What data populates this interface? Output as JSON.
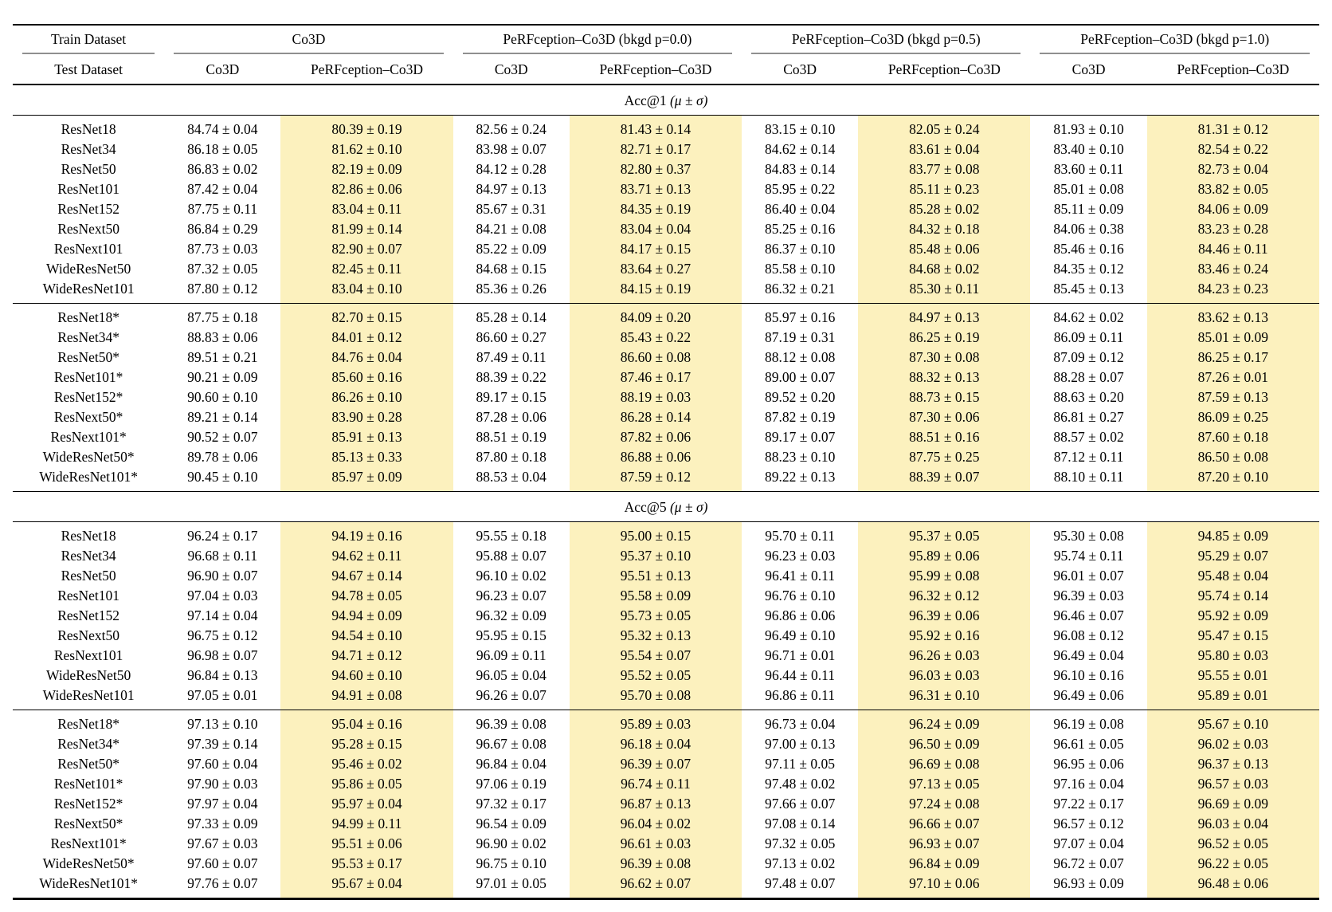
{
  "table": {
    "highlight_color": "#FCF1BE",
    "header": {
      "train_row_label": "Train Dataset",
      "test_row_label": "Test Dataset",
      "groups": [
        {
          "label": "Co3D",
          "tests": [
            "Co3D",
            "PeRFception–Co3D"
          ]
        },
        {
          "label": "PeRFception–Co3D (bkgd p=0.0)",
          "tests": [
            "Co3D",
            "PeRFception–Co3D"
          ]
        },
        {
          "label": "PeRFception–Co3D (bkgd p=0.5)",
          "tests": [
            "Co3D",
            "PeRFception–Co3D"
          ]
        },
        {
          "label": "PeRFception–Co3D (bkgd p=1.0)",
          "tests": [
            "Co3D",
            "PeRFception–Co3D"
          ]
        }
      ]
    },
    "sections": [
      {
        "title": "Acc@1",
        "symbols": "(μ ± σ)",
        "blocks": [
          {
            "rows": [
              {
                "model": "ResNet18",
                "values": [
                  "84.74 ± 0.04",
                  "80.39 ± 0.19",
                  "82.56 ± 0.24",
                  "81.43 ± 0.14",
                  "83.15 ± 0.10",
                  "82.05 ± 0.24",
                  "81.93 ± 0.10",
                  "81.31 ± 0.12"
                ]
              },
              {
                "model": "ResNet34",
                "values": [
                  "86.18 ± 0.05",
                  "81.62 ± 0.10",
                  "83.98 ± 0.07",
                  "82.71 ± 0.17",
                  "84.62 ± 0.14",
                  "83.61 ± 0.04",
                  "83.40 ± 0.10",
                  "82.54 ± 0.22"
                ]
              },
              {
                "model": "ResNet50",
                "values": [
                  "86.83 ± 0.02",
                  "82.19 ± 0.09",
                  "84.12 ± 0.28",
                  "82.80 ± 0.37",
                  "84.83 ± 0.14",
                  "83.77 ± 0.08",
                  "83.60 ± 0.11",
                  "82.73 ± 0.04"
                ]
              },
              {
                "model": "ResNet101",
                "values": [
                  "87.42 ± 0.04",
                  "82.86 ± 0.06",
                  "84.97 ± 0.13",
                  "83.71 ± 0.13",
                  "85.95 ± 0.22",
                  "85.11 ± 0.23",
                  "85.01 ± 0.08",
                  "83.82 ± 0.05"
                ]
              },
              {
                "model": "ResNet152",
                "values": [
                  "87.75 ± 0.11",
                  "83.04 ± 0.11",
                  "85.67 ± 0.31",
                  "84.35 ± 0.19",
                  "86.40 ± 0.04",
                  "85.28 ± 0.02",
                  "85.11 ± 0.09",
                  "84.06 ± 0.09"
                ]
              },
              {
                "model": "ResNext50",
                "values": [
                  "86.84 ± 0.29",
                  "81.99 ± 0.14",
                  "84.21 ± 0.08",
                  "83.04 ± 0.04",
                  "85.25 ± 0.16",
                  "84.32 ± 0.18",
                  "84.06 ± 0.38",
                  "83.23 ± 0.28"
                ]
              },
              {
                "model": "ResNext101",
                "values": [
                  "87.73 ± 0.03",
                  "82.90 ± 0.07",
                  "85.22 ± 0.09",
                  "84.17 ± 0.15",
                  "86.37 ± 0.10",
                  "85.48 ± 0.06",
                  "85.46 ± 0.16",
                  "84.46 ± 0.11"
                ]
              },
              {
                "model": "WideResNet50",
                "values": [
                  "87.32 ± 0.05",
                  "82.45 ± 0.11",
                  "84.68 ± 0.15",
                  "83.64 ± 0.27",
                  "85.58 ± 0.10",
                  "84.68 ± 0.02",
                  "84.35 ± 0.12",
                  "83.46 ± 0.24"
                ]
              },
              {
                "model": "WideResNet101",
                "values": [
                  "87.80 ± 0.12",
                  "83.04 ± 0.10",
                  "85.36 ± 0.26",
                  "84.15 ± 0.19",
                  "86.32 ± 0.21",
                  "85.30 ± 0.11",
                  "85.45 ± 0.13",
                  "84.23 ± 0.23"
                ]
              }
            ]
          },
          {
            "rows": [
              {
                "model": "ResNet18*",
                "values": [
                  "87.75 ± 0.18",
                  "82.70 ± 0.15",
                  "85.28 ± 0.14",
                  "84.09 ± 0.20",
                  "85.97 ± 0.16",
                  "84.97 ± 0.13",
                  "84.62 ± 0.02",
                  "83.62 ± 0.13"
                ]
              },
              {
                "model": "ResNet34*",
                "values": [
                  "88.83 ± 0.06",
                  "84.01 ± 0.12",
                  "86.60 ± 0.27",
                  "85.43 ± 0.22",
                  "87.19 ± 0.31",
                  "86.25 ± 0.19",
                  "86.09 ± 0.11",
                  "85.01 ± 0.09"
                ]
              },
              {
                "model": "ResNet50*",
                "values": [
                  "89.51 ± 0.21",
                  "84.76 ± 0.04",
                  "87.49 ± 0.11",
                  "86.60 ± 0.08",
                  "88.12 ± 0.08",
                  "87.30 ± 0.08",
                  "87.09 ± 0.12",
                  "86.25 ± 0.17"
                ]
              },
              {
                "model": "ResNet101*",
                "values": [
                  "90.21 ± 0.09",
                  "85.60 ± 0.16",
                  "88.39 ± 0.22",
                  "87.46 ± 0.17",
                  "89.00 ± 0.07",
                  "88.32 ± 0.13",
                  "88.28 ± 0.07",
                  "87.26 ± 0.01"
                ]
              },
              {
                "model": "ResNet152*",
                "values": [
                  "90.60 ± 0.10",
                  "86.26 ± 0.10",
                  "89.17 ± 0.15",
                  "88.19 ± 0.03",
                  "89.52 ± 0.20",
                  "88.73 ± 0.15",
                  "88.63 ± 0.20",
                  "87.59 ± 0.13"
                ]
              },
              {
                "model": "ResNext50*",
                "values": [
                  "89.21 ± 0.14",
                  "83.90 ± 0.28",
                  "87.28 ± 0.06",
                  "86.28 ± 0.14",
                  "87.82 ± 0.19",
                  "87.30 ± 0.06",
                  "86.81 ± 0.27",
                  "86.09 ± 0.25"
                ]
              },
              {
                "model": "ResNext101*",
                "values": [
                  "90.52 ± 0.07",
                  "85.91 ± 0.13",
                  "88.51 ± 0.19",
                  "87.82 ± 0.06",
                  "89.17 ± 0.07",
                  "88.51 ± 0.16",
                  "88.57 ± 0.02",
                  "87.60 ± 0.18"
                ]
              },
              {
                "model": "WideResNet50*",
                "values": [
                  "89.78 ± 0.06",
                  "85.13 ± 0.33",
                  "87.80 ± 0.18",
                  "86.88 ± 0.06",
                  "88.23 ± 0.10",
                  "87.75 ± 0.25",
                  "87.12 ± 0.11",
                  "86.50 ± 0.08"
                ]
              },
              {
                "model": "WideResNet101*",
                "values": [
                  "90.45 ± 0.10",
                  "85.97 ± 0.09",
                  "88.53 ± 0.04",
                  "87.59 ± 0.12",
                  "89.22 ± 0.13",
                  "88.39 ± 0.07",
                  "88.10 ± 0.11",
                  "87.20 ± 0.10"
                ]
              }
            ]
          }
        ]
      },
      {
        "title": "Acc@5",
        "symbols": "(μ ± σ)",
        "blocks": [
          {
            "rows": [
              {
                "model": "ResNet18",
                "values": [
                  "96.24 ± 0.17",
                  "94.19 ± 0.16",
                  "95.55 ± 0.18",
                  "95.00 ± 0.15",
                  "95.70 ± 0.11",
                  "95.37 ± 0.05",
                  "95.30 ± 0.08",
                  "94.85 ± 0.09"
                ]
              },
              {
                "model": "ResNet34",
                "values": [
                  "96.68 ± 0.11",
                  "94.62 ± 0.11",
                  "95.88 ± 0.07",
                  "95.37 ± 0.10",
                  "96.23 ± 0.03",
                  "95.89 ± 0.06",
                  "95.74 ± 0.11",
                  "95.29 ± 0.07"
                ]
              },
              {
                "model": "ResNet50",
                "values": [
                  "96.90 ± 0.07",
                  "94.67 ± 0.14",
                  "96.10 ± 0.02",
                  "95.51 ± 0.13",
                  "96.41 ± 0.11",
                  "95.99 ± 0.08",
                  "96.01 ± 0.07",
                  "95.48 ± 0.04"
                ]
              },
              {
                "model": "ResNet101",
                "values": [
                  "97.04 ± 0.03",
                  "94.78 ± 0.05",
                  "96.23 ± 0.07",
                  "95.58 ± 0.09",
                  "96.76 ± 0.10",
                  "96.32 ± 0.12",
                  "96.39 ± 0.03",
                  "95.74 ± 0.14"
                ]
              },
              {
                "model": "ResNet152",
                "values": [
                  "97.14 ± 0.04",
                  "94.94 ± 0.09",
                  "96.32 ± 0.09",
                  "95.73 ± 0.05",
                  "96.86 ± 0.06",
                  "96.39 ± 0.06",
                  "96.46 ± 0.07",
                  "95.92 ± 0.09"
                ]
              },
              {
                "model": "ResNext50",
                "values": [
                  "96.75 ± 0.12",
                  "94.54 ± 0.10",
                  "95.95 ± 0.15",
                  "95.32 ± 0.13",
                  "96.49 ± 0.10",
                  "95.92 ± 0.16",
                  "96.08 ± 0.12",
                  "95.47 ± 0.15"
                ]
              },
              {
                "model": "ResNext101",
                "values": [
                  "96.98 ± 0.07",
                  "94.71 ± 0.12",
                  "96.09 ± 0.11",
                  "95.54 ± 0.07",
                  "96.71 ± 0.01",
                  "96.26 ± 0.03",
                  "96.49 ± 0.04",
                  "95.80 ± 0.03"
                ]
              },
              {
                "model": "WideResNet50",
                "values": [
                  "96.84 ± 0.13",
                  "94.60 ± 0.10",
                  "96.05 ± 0.04",
                  "95.52 ± 0.05",
                  "96.44 ± 0.11",
                  "96.03 ± 0.03",
                  "96.10 ± 0.16",
                  "95.55 ± 0.01"
                ]
              },
              {
                "model": "WideResNet101",
                "values": [
                  "97.05 ± 0.01",
                  "94.91 ± 0.08",
                  "96.26 ± 0.07",
                  "95.70 ± 0.08",
                  "96.86 ± 0.11",
                  "96.31 ± 0.10",
                  "96.49 ± 0.06",
                  "95.89 ± 0.01"
                ]
              }
            ]
          },
          {
            "rows": [
              {
                "model": "ResNet18*",
                "values": [
                  "97.13 ± 0.10",
                  "95.04 ± 0.16",
                  "96.39 ± 0.08",
                  "95.89 ± 0.03",
                  "96.73 ± 0.04",
                  "96.24 ± 0.09",
                  "96.19 ± 0.08",
                  "95.67 ± 0.10"
                ]
              },
              {
                "model": "ResNet34*",
                "values": [
                  "97.39 ± 0.14",
                  "95.28 ± 0.15",
                  "96.67 ± 0.08",
                  "96.18 ± 0.04",
                  "97.00 ± 0.13",
                  "96.50 ± 0.09",
                  "96.61 ± 0.05",
                  "96.02 ± 0.03"
                ]
              },
              {
                "model": "ResNet50*",
                "values": [
                  "97.60 ± 0.04",
                  "95.46 ± 0.02",
                  "96.84 ± 0.04",
                  "96.39 ± 0.07",
                  "97.11 ± 0.05",
                  "96.69 ± 0.08",
                  "96.95 ± 0.06",
                  "96.37 ± 0.13"
                ]
              },
              {
                "model": "ResNet101*",
                "values": [
                  "97.90 ± 0.03",
                  "95.86 ± 0.05",
                  "97.06 ± 0.19",
                  "96.74 ± 0.11",
                  "97.48 ± 0.02",
                  "97.13 ± 0.05",
                  "97.16 ± 0.04",
                  "96.57 ± 0.03"
                ]
              },
              {
                "model": "ResNet152*",
                "values": [
                  "97.97 ± 0.04",
                  "95.97 ± 0.04",
                  "97.32 ± 0.17",
                  "96.87 ± 0.13",
                  "97.66 ± 0.07",
                  "97.24 ± 0.08",
                  "97.22 ± 0.17",
                  "96.69 ± 0.09"
                ]
              },
              {
                "model": "ResNext50*",
                "values": [
                  "97.33 ± 0.09",
                  "94.99 ± 0.11",
                  "96.54 ± 0.09",
                  "96.04 ± 0.02",
                  "97.08 ± 0.14",
                  "96.66 ± 0.07",
                  "96.57 ± 0.12",
                  "96.03 ± 0.04"
                ]
              },
              {
                "model": "ResNext101*",
                "values": [
                  "97.67 ± 0.03",
                  "95.51 ± 0.06",
                  "96.90 ± 0.02",
                  "96.61 ± 0.03",
                  "97.32 ± 0.05",
                  "96.93 ± 0.07",
                  "97.07 ± 0.04",
                  "96.52 ± 0.05"
                ]
              },
              {
                "model": "WideResNet50*",
                "values": [
                  "97.60 ± 0.07",
                  "95.53 ± 0.17",
                  "96.75 ± 0.10",
                  "96.39 ± 0.08",
                  "97.13 ± 0.02",
                  "96.84 ± 0.09",
                  "96.72 ± 0.07",
                  "96.22 ± 0.05"
                ]
              },
              {
                "model": "WideResNet101*",
                "values": [
                  "97.76 ± 0.07",
                  "95.67 ± 0.04",
                  "97.01 ± 0.05",
                  "96.62 ± 0.07",
                  "97.48 ± 0.07",
                  "97.10 ± 0.06",
                  "96.93 ± 0.09",
                  "96.48 ± 0.06"
                ]
              }
            ]
          }
        ]
      }
    ]
  }
}
